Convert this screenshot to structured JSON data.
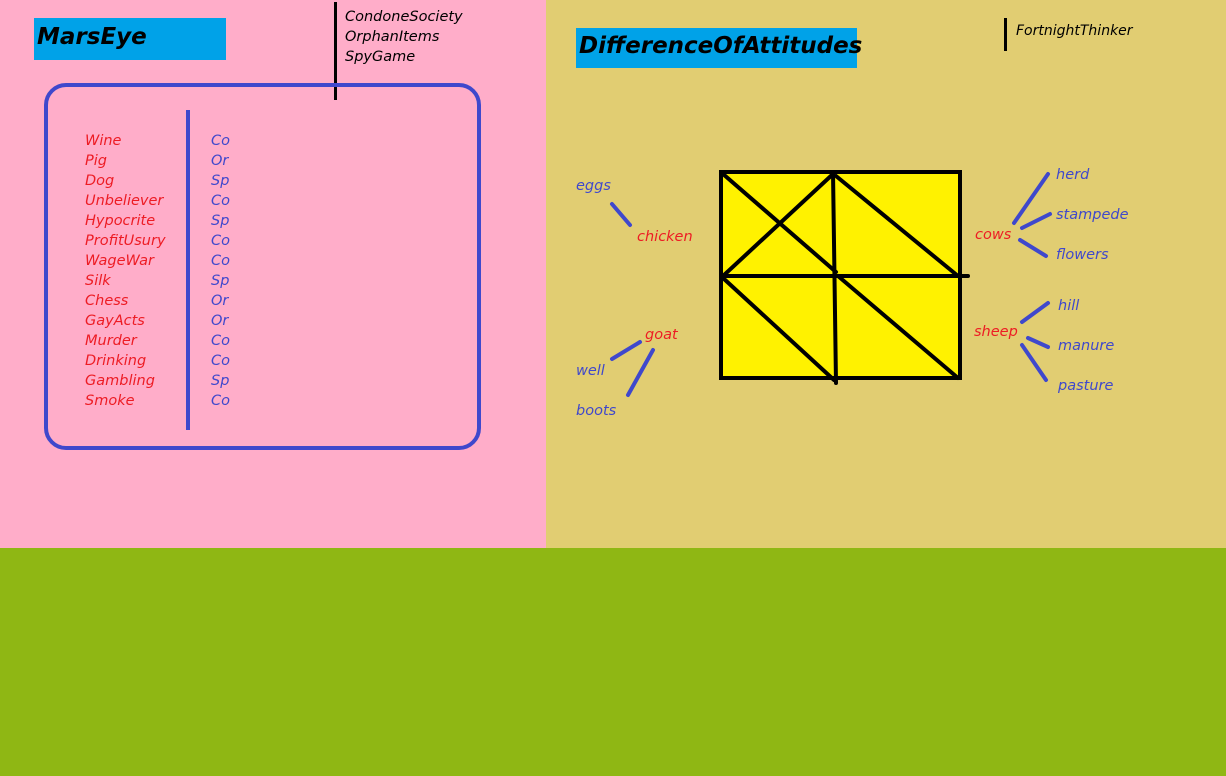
{
  "colors": {
    "left_bg": "#FFADC9",
    "right_bg": "#E1CD72",
    "bottom_bg": "#8FB714",
    "title_bg": "#00A2E8",
    "frame": "#3F48CC",
    "red_text": "#ED1C24",
    "blue_text": "#3F48CC",
    "square_fill": "#FFF200",
    "ink": "#000000"
  },
  "left": {
    "title": "MarsEye",
    "top_list": [
      "CondoneSociety",
      "OrphanItems",
      "SpyGame"
    ],
    "rows": [
      {
        "item": "Wine",
        "code": "Co"
      },
      {
        "item": "Pig",
        "code": "Or"
      },
      {
        "item": "Dog",
        "code": "Sp"
      },
      {
        "item": "Unbeliever",
        "code": "Co"
      },
      {
        "item": "Hypocrite",
        "code": "Sp"
      },
      {
        "item": "ProfitUsury",
        "code": "Co"
      },
      {
        "item": "WageWar",
        "code": "Co"
      },
      {
        "item": "Silk",
        "code": "Sp"
      },
      {
        "item": "Chess",
        "code": "Or"
      },
      {
        "item": "GayActs",
        "code": "Or"
      },
      {
        "item": "Murder",
        "code": "Co"
      },
      {
        "item": "Drinking",
        "code": "Co"
      },
      {
        "item": "Gambling",
        "code": "Sp"
      },
      {
        "item": "Smoke",
        "code": "Co"
      }
    ]
  },
  "right": {
    "title": "DifferenceOfAttitudes",
    "thinker": "FortnightThinker",
    "nodes": {
      "chicken": "chicken",
      "eggs": "eggs",
      "goat": "goat",
      "well": "well",
      "boots": "boots",
      "cows": "cows",
      "herd": "herd",
      "stampede": "stampede",
      "flowers": "flowers",
      "sheep": "sheep",
      "hill": "hill",
      "manure": "manure",
      "pasture": "pasture"
    }
  }
}
